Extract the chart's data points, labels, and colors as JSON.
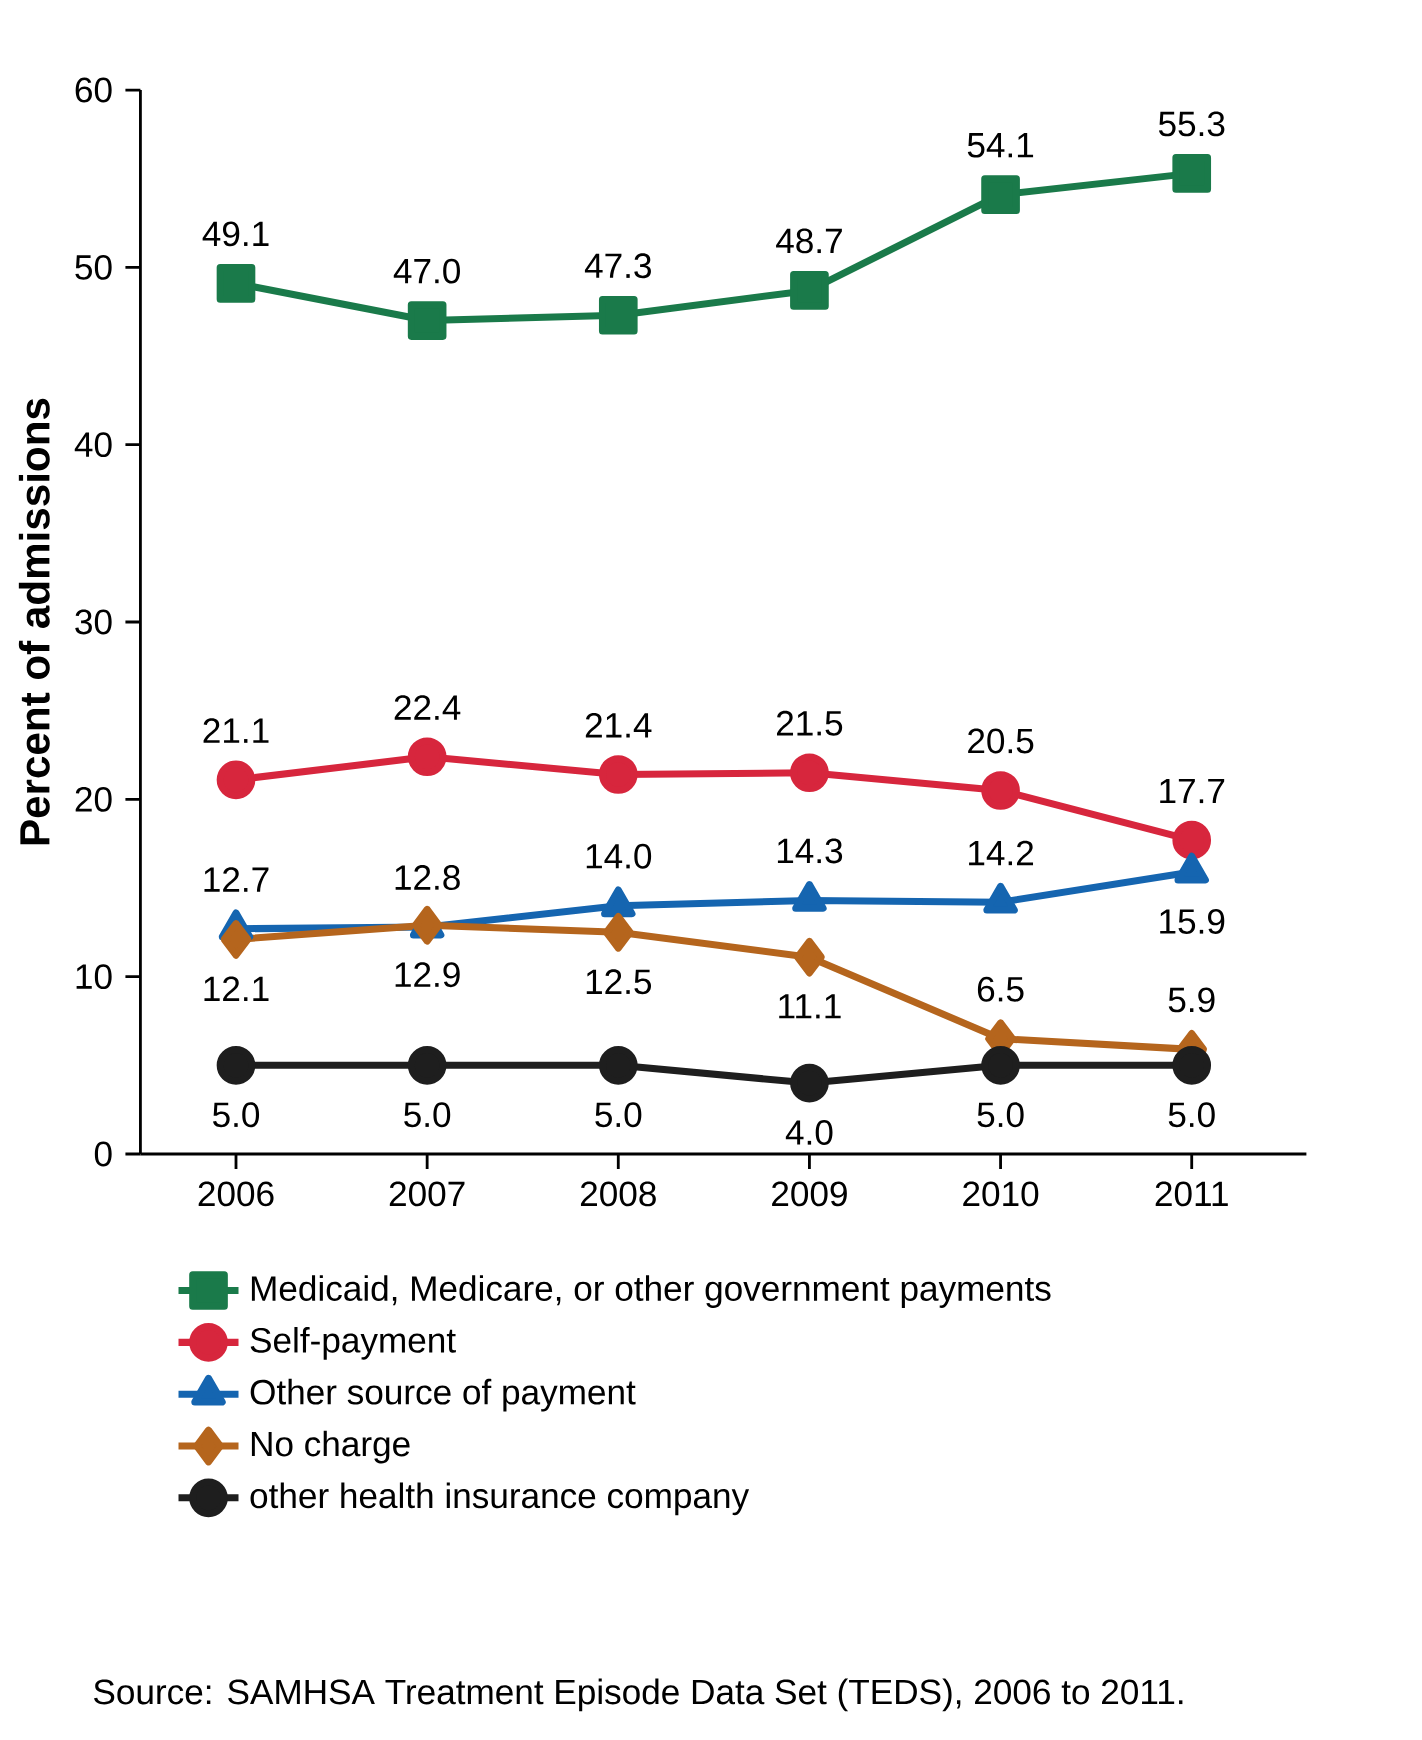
{
  "chart_data": {
    "type": "line",
    "ylabel": "Percent of admissions",
    "categories": [
      "2006",
      "2007",
      "2008",
      "2009",
      "2010",
      "2011"
    ],
    "ylim": [
      0,
      60
    ],
    "yticks": [
      0,
      10,
      20,
      30,
      40,
      50,
      60
    ],
    "grid": false,
    "legend": "bottom",
    "series": [
      {
        "name": "Medicaid, Medicare, or other government payments",
        "color": "#1a7a4a",
        "marker": "square",
        "values": [
          49.1,
          47.0,
          47.3,
          48.7,
          54.1,
          55.3
        ],
        "value_labels": [
          "49.1",
          "47.0",
          "47.3",
          "48.7",
          "54.1",
          "55.3"
        ]
      },
      {
        "name": "Self-payment",
        "color": "#d7263d",
        "marker": "circle",
        "values": [
          21.1,
          22.4,
          21.4,
          21.5,
          20.5,
          17.7
        ],
        "value_labels": [
          "21.1",
          "22.4",
          "21.4",
          "21.5",
          "20.5",
          "17.7"
        ]
      },
      {
        "name": "Other source of payment",
        "color": "#1565b0",
        "marker": "triangle",
        "values": [
          12.7,
          12.8,
          14.0,
          14.3,
          14.2,
          15.9
        ],
        "value_labels": [
          "12.7",
          "12.8",
          "14.0",
          "14.3",
          "14.2",
          "15.9"
        ]
      },
      {
        "name": "No charge",
        "color": "#b5651d",
        "marker": "diamond",
        "values": [
          12.1,
          12.9,
          12.5,
          11.1,
          6.5,
          5.9
        ],
        "value_labels": [
          "12.1",
          "12.9",
          "12.5",
          "11.1",
          "6.5",
          "5.9"
        ]
      },
      {
        "name": "other health insurance company",
        "color": "#1e1e1e",
        "marker": "circle",
        "values": [
          5.0,
          5.0,
          5.0,
          4.0,
          5.0,
          5.0
        ],
        "value_labels": [
          "5.0",
          "5.0",
          "5.0",
          "4.0",
          "5.0",
          "5.0"
        ]
      }
    ],
    "annotations": [
      "Source: SAMHSA Treatment Episode Data Set (TEDS), 2006 to 2011."
    ]
  }
}
